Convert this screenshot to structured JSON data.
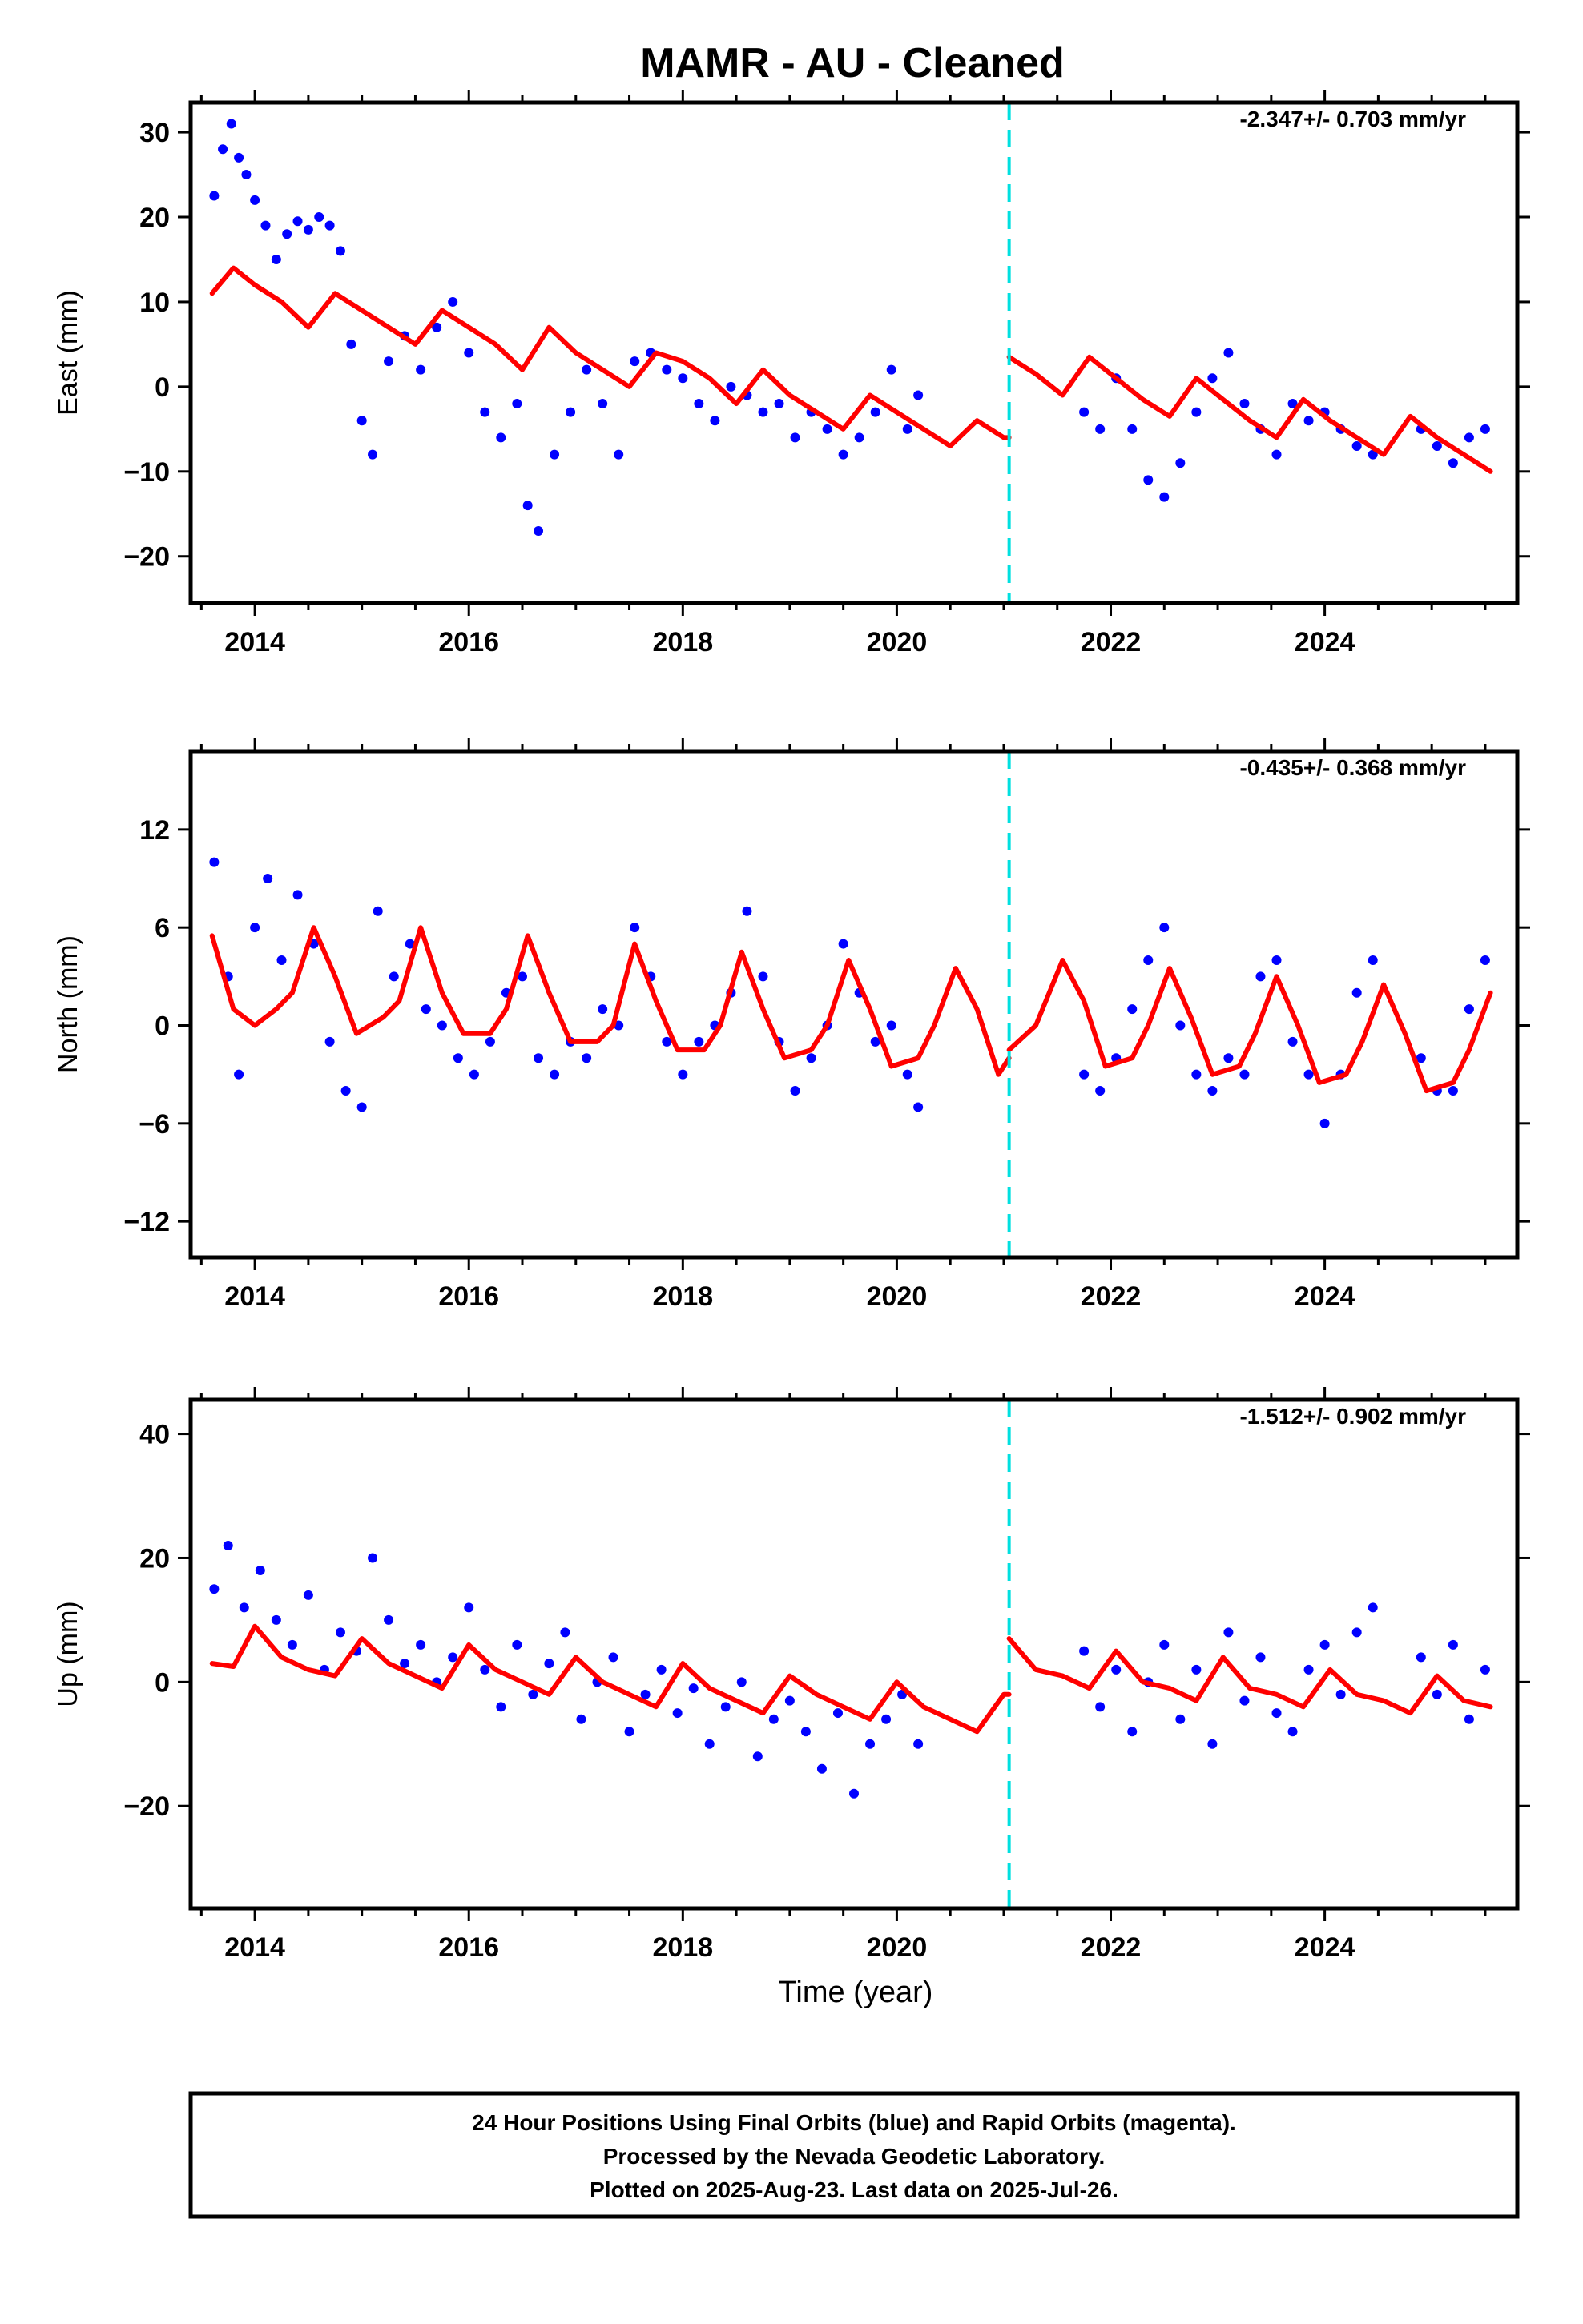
{
  "figure": {
    "title": "MAMR  - AU - Cleaned",
    "x_axis_label": "Time (year)",
    "footer": [
      "24 Hour Positions Using Final Orbits (blue) and Rapid Orbits (magenta).",
      "Processed by the Nevada Geodetic Laboratory.",
      "Plotted on 2025-Aug-23. Last data on 2025-Jul-26."
    ],
    "colors": {
      "data": "#0000ff",
      "model": "#ff0000",
      "break": "#00e0e0",
      "frame": "#000000"
    }
  },
  "chart_data": [
    {
      "type": "scatter",
      "title": "",
      "ylabel": "East (mm)",
      "xlabel": "",
      "xlim": [
        2013.4,
        2025.8
      ],
      "ylim": [
        -25.5,
        33.5
      ],
      "yticks": [
        -20,
        -10,
        0,
        10,
        20,
        30
      ],
      "xticks": [
        2014,
        2016,
        2018,
        2020,
        2022,
        2024
      ],
      "rate_label": "-2.347+/- 0.703 mm/yr",
      "grid": false,
      "equipment_change": 2021.05,
      "series": [
        {
          "kind": "points",
          "x": [
            2013.62,
            2013.7,
            2013.78,
            2013.85,
            2013.92,
            2014.0,
            2014.1,
            2014.2,
            2014.3,
            2014.4,
            2014.5,
            2014.6,
            2014.7,
            2014.8,
            2014.9,
            2015.0,
            2015.1,
            2015.25,
            2015.4,
            2015.55,
            2015.7,
            2015.85,
            2016.0,
            2016.15,
            2016.3,
            2016.45,
            2016.55,
            2016.65,
            2016.8,
            2016.95,
            2017.1,
            2017.25,
            2017.4,
            2017.55,
            2017.7,
            2017.85,
            2018.0,
            2018.15,
            2018.3,
            2018.45,
            2018.6,
            2018.75,
            2018.9,
            2019.05,
            2019.2,
            2019.35,
            2019.5,
            2019.65,
            2019.8,
            2019.95,
            2020.1,
            2020.2,
            2021.75,
            2021.9,
            2022.05,
            2022.2,
            2022.35,
            2022.5,
            2022.65,
            2022.8,
            2022.95,
            2023.1,
            2023.25,
            2023.4,
            2023.55,
            2023.7,
            2023.85,
            2024.0,
            2024.15,
            2024.3,
            2024.45,
            2024.9,
            2025.05,
            2025.2,
            2025.35,
            2025.5
          ],
          "y": [
            22.5,
            28,
            31,
            27,
            25,
            22,
            19,
            15,
            18,
            19.5,
            18.5,
            20,
            19,
            16,
            5,
            -4,
            -8,
            3,
            6,
            2,
            7,
            10,
            4,
            -3,
            -6,
            -2,
            -14,
            -17,
            -8,
            -3,
            2,
            -2,
            -8,
            3,
            4,
            2,
            1,
            -2,
            -4,
            0,
            -1,
            -3,
            -2,
            -6,
            -3,
            -5,
            -8,
            -6,
            -3,
            2,
            -5,
            -1,
            -3,
            -5,
            1,
            -5,
            -11,
            -13,
            -9,
            -3,
            1,
            4,
            -2,
            -5,
            -8,
            -2,
            -4,
            -3,
            -5,
            -7,
            -8,
            -5,
            -7,
            -9,
            -6,
            -5
          ]
        },
        {
          "kind": "model",
          "x": [
            2013.6,
            2013.8,
            2014.0,
            2014.25,
            2014.5,
            2014.75,
            2015.0,
            2015.25,
            2015.5,
            2015.75,
            2016.0,
            2016.25,
            2016.5,
            2016.75,
            2017.0,
            2017.25,
            2017.5,
            2017.75,
            2018.0,
            2018.25,
            2018.5,
            2018.75,
            2019.0,
            2019.25,
            2019.5,
            2019.75,
            2020.0,
            2020.25,
            2020.5,
            2020.75,
            2021.0,
            2021.05
          ],
          "y": [
            11,
            14,
            12,
            10,
            7,
            11,
            9,
            7,
            5,
            9,
            7,
            5,
            2,
            7,
            4,
            2,
            0,
            4,
            3,
            1,
            -2,
            2,
            -1,
            -3,
            -5,
            -1,
            -3,
            -5,
            -7,
            -4,
            -6,
            -6
          ]
        },
        {
          "kind": "model",
          "x": [
            2021.05,
            2021.3,
            2021.55,
            2021.8,
            2022.05,
            2022.3,
            2022.55,
            2022.8,
            2023.05,
            2023.3,
            2023.55,
            2023.8,
            2024.05,
            2024.3,
            2024.55,
            2024.8,
            2025.05,
            2025.3,
            2025.55
          ],
          "y": [
            3.5,
            1.5,
            -1,
            3.5,
            1,
            -1.5,
            -3.5,
            1,
            -1.5,
            -4,
            -6,
            -1.5,
            -4,
            -6,
            -8,
            -3.5,
            -6,
            -8,
            -10
          ]
        }
      ]
    },
    {
      "type": "scatter",
      "title": "",
      "ylabel": "North (mm)",
      "xlabel": "",
      "xlim": [
        2013.4,
        2025.8
      ],
      "ylim": [
        -14.2,
        16.8
      ],
      "yticks": [
        -12,
        -6,
        0,
        6,
        12
      ],
      "xticks": [
        2014,
        2016,
        2018,
        2020,
        2022,
        2024
      ],
      "rate_label": "-0.435+/- 0.368 mm/yr",
      "grid": false,
      "equipment_change": 2021.05,
      "series": [
        {
          "kind": "points",
          "x": [
            2013.62,
            2013.75,
            2013.85,
            2014.0,
            2014.12,
            2014.25,
            2014.4,
            2014.55,
            2014.7,
            2014.85,
            2015.0,
            2015.15,
            2015.3,
            2015.45,
            2015.6,
            2015.75,
            2015.9,
            2016.05,
            2016.2,
            2016.35,
            2016.5,
            2016.65,
            2016.8,
            2016.95,
            2017.1,
            2017.25,
            2017.4,
            2017.55,
            2017.7,
            2017.85,
            2018.0,
            2018.15,
            2018.3,
            2018.45,
            2018.6,
            2018.75,
            2018.9,
            2019.05,
            2019.2,
            2019.35,
            2019.5,
            2019.65,
            2019.8,
            2019.95,
            2020.1,
            2020.2,
            2021.75,
            2021.9,
            2022.05,
            2022.2,
            2022.35,
            2022.5,
            2022.65,
            2022.8,
            2022.95,
            2023.1,
            2023.25,
            2023.4,
            2023.55,
            2023.7,
            2023.85,
            2024.0,
            2024.15,
            2024.3,
            2024.45,
            2024.9,
            2025.05,
            2025.2,
            2025.35,
            2025.5
          ],
          "y": [
            10,
            3,
            -3,
            6,
            9,
            4,
            8,
            5,
            -1,
            -4,
            -5,
            7,
            3,
            5,
            1,
            0,
            -2,
            -3,
            -1,
            2,
            3,
            -2,
            -3,
            -1,
            -2,
            1,
            0,
            6,
            3,
            -1,
            -3,
            -1,
            0,
            2,
            7,
            3,
            -1,
            -4,
            -2,
            0,
            5,
            2,
            -1,
            0,
            -3,
            -5,
            -3,
            -4,
            -2,
            1,
            4,
            6,
            0,
            -3,
            -4,
            -2,
            -3,
            3,
            4,
            -1,
            -3,
            -6,
            -3,
            2,
            4,
            -2,
            -4,
            -4,
            1,
            4
          ]
        },
        {
          "kind": "model",
          "x": [
            2013.6,
            2013.8,
            2014.0,
            2014.2,
            2014.35,
            2014.55,
            2014.75,
            2014.95,
            2015.2,
            2015.35,
            2015.55,
            2015.75,
            2015.95,
            2016.2,
            2016.35,
            2016.55,
            2016.75,
            2016.95,
            2017.2,
            2017.35,
            2017.55,
            2017.75,
            2017.95,
            2018.2,
            2018.35,
            2018.55,
            2018.75,
            2018.95,
            2019.2,
            2019.35,
            2019.55,
            2019.75,
            2019.95,
            2020.2,
            2020.35,
            2020.55,
            2020.75,
            2020.95,
            2021.05
          ],
          "y": [
            5.5,
            1,
            0,
            1,
            2,
            6,
            3,
            -0.5,
            0.5,
            1.5,
            6,
            2,
            -0.5,
            -0.5,
            1,
            5.5,
            2,
            -1,
            -1,
            0,
            5,
            1.5,
            -1.5,
            -1.5,
            0,
            4.5,
            1,
            -2,
            -1.5,
            0,
            4,
            1,
            -2.5,
            -2,
            0,
            3.5,
            1,
            -3,
            -2
          ]
        },
        {
          "kind": "model",
          "x": [
            2021.05,
            2021.3,
            2021.55,
            2021.75,
            2021.95,
            2022.2,
            2022.35,
            2022.55,
            2022.75,
            2022.95,
            2023.2,
            2023.35,
            2023.55,
            2023.75,
            2023.95,
            2024.2,
            2024.35,
            2024.55,
            2024.75,
            2024.95,
            2025.2,
            2025.35,
            2025.55
          ],
          "y": [
            -1.5,
            0,
            4,
            1.5,
            -2.5,
            -2,
            0,
            3.5,
            0.5,
            -3,
            -2.5,
            -0.5,
            3,
            0,
            -3.5,
            -3,
            -1,
            2.5,
            -0.5,
            -4,
            -3.5,
            -1.5,
            2
          ]
        }
      ]
    },
    {
      "type": "scatter",
      "title": "",
      "ylabel": "Up (mm)",
      "xlabel": "Time (year)",
      "xlim": [
        2013.4,
        2025.8
      ],
      "ylim": [
        -36.5,
        45.5
      ],
      "yticks": [
        -20,
        0,
        20,
        40
      ],
      "xticks": [
        2014,
        2016,
        2018,
        2020,
        2022,
        2024
      ],
      "rate_label": "-1.512+/- 0.902 mm/yr",
      "grid": false,
      "equipment_change": 2021.05,
      "series": [
        {
          "kind": "points",
          "x": [
            2013.62,
            2013.75,
            2013.9,
            2014.05,
            2014.2,
            2014.35,
            2014.5,
            2014.65,
            2014.8,
            2014.95,
            2015.1,
            2015.25,
            2015.4,
            2015.55,
            2015.7,
            2015.85,
            2016.0,
            2016.15,
            2016.3,
            2016.45,
            2016.6,
            2016.75,
            2016.9,
            2017.05,
            2017.2,
            2017.35,
            2017.5,
            2017.65,
            2017.8,
            2017.95,
            2018.1,
            2018.25,
            2018.4,
            2018.55,
            2018.7,
            2018.85,
            2019.0,
            2019.15,
            2019.3,
            2019.45,
            2019.6,
            2019.75,
            2019.9,
            2020.05,
            2020.2,
            2021.75,
            2021.9,
            2022.05,
            2022.2,
            2022.35,
            2022.5,
            2022.65,
            2022.8,
            2022.95,
            2023.1,
            2023.25,
            2023.4,
            2023.55,
            2023.7,
            2023.85,
            2024.0,
            2024.15,
            2024.3,
            2024.45,
            2024.9,
            2025.05,
            2025.2,
            2025.35,
            2025.5
          ],
          "y": [
            15,
            22,
            12,
            18,
            10,
            6,
            14,
            2,
            8,
            5,
            20,
            10,
            3,
            6,
            0,
            4,
            12,
            2,
            -4,
            6,
            -2,
            3,
            8,
            -6,
            0,
            4,
            -8,
            -2,
            2,
            -5,
            -1,
            -10,
            -4,
            0,
            -12,
            -6,
            -3,
            -8,
            -14,
            -5,
            -18,
            -10,
            -6,
            -2,
            -10,
            5,
            -4,
            2,
            -8,
            0,
            6,
            -6,
            2,
            -10,
            8,
            -3,
            4,
            -5,
            -8,
            2,
            6,
            -2,
            8,
            12,
            4,
            -2,
            6,
            -6,
            2
          ]
        },
        {
          "kind": "model",
          "x": [
            2013.6,
            2013.8,
            2014.0,
            2014.25,
            2014.5,
            2014.75,
            2015.0,
            2015.25,
            2015.5,
            2015.75,
            2016.0,
            2016.25,
            2016.5,
            2016.75,
            2017.0,
            2017.25,
            2017.5,
            2017.75,
            2018.0,
            2018.25,
            2018.5,
            2018.75,
            2019.0,
            2019.25,
            2019.5,
            2019.75,
            2020.0,
            2020.25,
            2020.5,
            2020.75,
            2021.0,
            2021.05
          ],
          "y": [
            3,
            2.5,
            9,
            4,
            2,
            1,
            7,
            3,
            1,
            -1,
            6,
            2,
            0,
            -2,
            4,
            0,
            -2,
            -4,
            3,
            -1,
            -3,
            -5,
            1,
            -2,
            -4,
            -6,
            0,
            -4,
            -6,
            -8,
            -2,
            -2
          ]
        },
        {
          "kind": "model",
          "x": [
            2021.05,
            2021.3,
            2021.55,
            2021.8,
            2022.05,
            2022.3,
            2022.55,
            2022.8,
            2023.05,
            2023.3,
            2023.55,
            2023.8,
            2024.05,
            2024.3,
            2024.55,
            2024.8,
            2025.05,
            2025.3,
            2025.55
          ],
          "y": [
            7,
            2,
            1,
            -1,
            5,
            0,
            -1,
            -3,
            4,
            -1,
            -2,
            -4,
            2,
            -2,
            -3,
            -5,
            1,
            -3,
            -4
          ]
        }
      ]
    }
  ]
}
